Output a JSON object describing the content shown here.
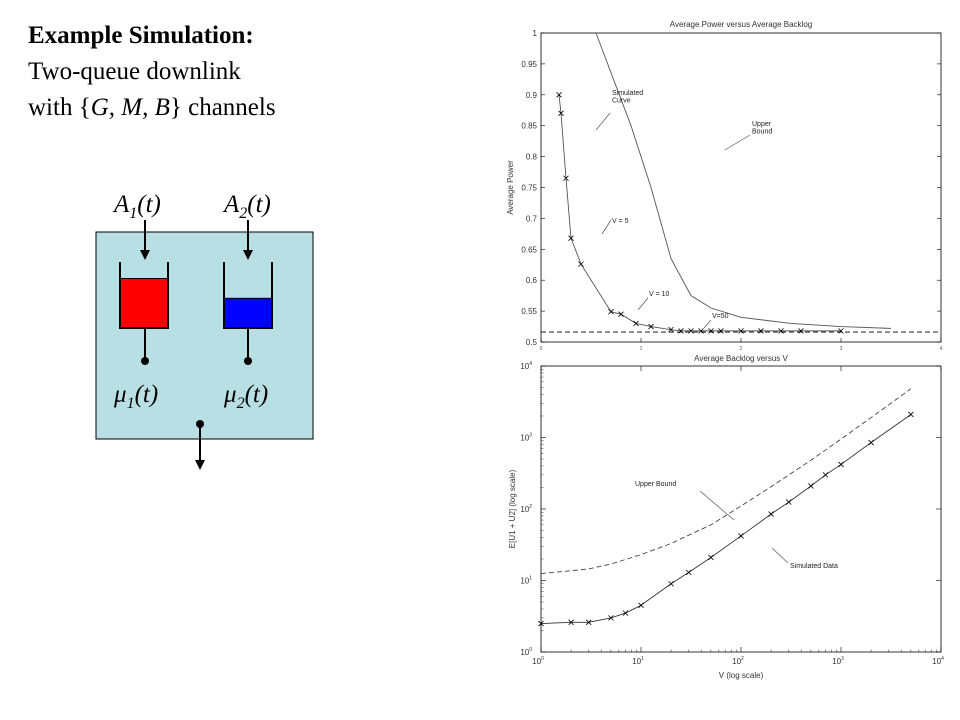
{
  "slide": {
    "title_bold": "Example Simulation:",
    "line2": "Two-queue downlink",
    "line3_pre": "with {",
    "line3_vars": "G, M, B",
    "line3_post": "} channels"
  },
  "diagram": {
    "arrivals": [
      {
        "label": "A",
        "sub": "1",
        "suffix": "(t)"
      },
      {
        "label": "A",
        "sub": "2",
        "suffix": "(t)"
      }
    ],
    "services": [
      {
        "label": "μ",
        "sub": "1",
        "suffix": "(t)"
      },
      {
        "label": "μ",
        "sub": "2",
        "suffix": "(t)"
      }
    ],
    "colors": {
      "panel": "#b8e0e4",
      "queue1": "#ff0000",
      "queue2": "#0000ff"
    },
    "queue_fill": [
      0.75,
      0.45
    ]
  },
  "chart_data": [
    {
      "type": "line",
      "title": "Average Power versus Average Backlog",
      "xlabel": "",
      "ylabel": "Average Power",
      "xlim": [
        0,
        4
      ],
      "ylim": [
        0.5,
        1.0
      ],
      "yticks": [
        "0.5",
        "0.55",
        "0.6",
        "0.65",
        "0.7",
        "0.75",
        "0.8",
        "0.85",
        "0.9",
        "0.95",
        "1"
      ],
      "xticks": [
        "0",
        "1",
        "2",
        "3",
        "4"
      ],
      "series": [
        {
          "name": "Simulated Curve",
          "style": "solid-x",
          "x": [
            0.18,
            0.2,
            0.25,
            0.3,
            0.4,
            0.7,
            0.8,
            0.95,
            1.1,
            1.3,
            1.4,
            1.5,
            1.6,
            1.7,
            1.8,
            2.0,
            2.2,
            2.4,
            2.6,
            3.0
          ],
          "y": [
            0.9,
            0.87,
            0.765,
            0.668,
            0.626,
            0.549,
            0.545,
            0.53,
            0.525,
            0.52,
            0.518,
            0.518,
            0.518,
            0.518,
            0.518,
            0.518,
            0.518,
            0.518,
            0.518,
            0.518
          ]
        },
        {
          "name": "Upper Bound",
          "style": "solid",
          "x": [
            0.55,
            0.9,
            1.1,
            1.3,
            1.5,
            1.7,
            2.0,
            2.5,
            3.0,
            3.5
          ],
          "y": [
            1.0,
            0.85,
            0.75,
            0.635,
            0.575,
            0.555,
            0.54,
            0.53,
            0.525,
            0.522
          ]
        },
        {
          "name": "",
          "style": "dashed",
          "x": [
            0,
            4
          ],
          "y": [
            0.516,
            0.516
          ]
        }
      ],
      "annotations": [
        "Simulated\nCurve",
        "Upper\nBound",
        "V = 5",
        "V = 10",
        "V=50"
      ]
    },
    {
      "type": "line",
      "title": "Average Backlog versus V",
      "xlabel": "V  (log scale)",
      "ylabel": "E[U1 + U2]  (log scale)",
      "xscale": "log",
      "yscale": "log",
      "xlim": [
        1,
        10000
      ],
      "ylim": [
        1,
        10000
      ],
      "series": [
        {
          "name": "Simulated Data",
          "style": "solid-x",
          "x": [
            1,
            2,
            3,
            5,
            7,
            10,
            20,
            30,
            50,
            100,
            200,
            300,
            500,
            700,
            1000,
            2000,
            5000
          ],
          "y": [
            2.5,
            2.6,
            2.6,
            3.0,
            3.5,
            4.5,
            9,
            13,
            21,
            42,
            85,
            125,
            210,
            300,
            420,
            850,
            2100
          ]
        },
        {
          "name": "Upper Bound",
          "style": "dashed",
          "x": [
            1,
            3,
            5,
            10,
            20,
            50,
            100,
            200,
            500,
            1000,
            2000,
            5000
          ],
          "y": [
            12.5,
            14.5,
            17,
            23,
            33,
            60,
            110,
            205,
            480,
            950,
            1900,
            4800
          ]
        }
      ],
      "annotations": [
        "Upper Bound",
        "Simulated Data"
      ]
    }
  ]
}
